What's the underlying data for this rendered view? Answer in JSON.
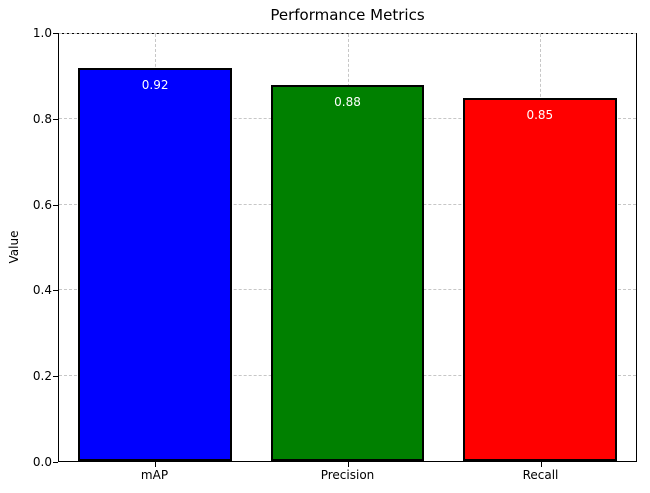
{
  "chart_data": {
    "type": "bar",
    "title": "Performance Metrics",
    "categories": [
      "mAP",
      "Precision",
      "Recall"
    ],
    "values": [
      0.92,
      0.88,
      0.85
    ],
    "value_labels": [
      "0.92",
      "0.88",
      "0.85"
    ],
    "value_label_color": "#ffffff",
    "bar_colors": [
      "#0000ff",
      "#008000",
      "#ff0000"
    ],
    "bar_edge_color": "#000000",
    "xlabel": "",
    "ylabel": "Value",
    "ylim": [
      0.0,
      1.0
    ],
    "yticks": [
      "0.0",
      "0.2",
      "0.4",
      "0.6",
      "0.8",
      "1.0"
    ],
    "grid": true,
    "grid_style": "dashed",
    "grid_color": "#c7c7c7",
    "legend_position": "none"
  }
}
